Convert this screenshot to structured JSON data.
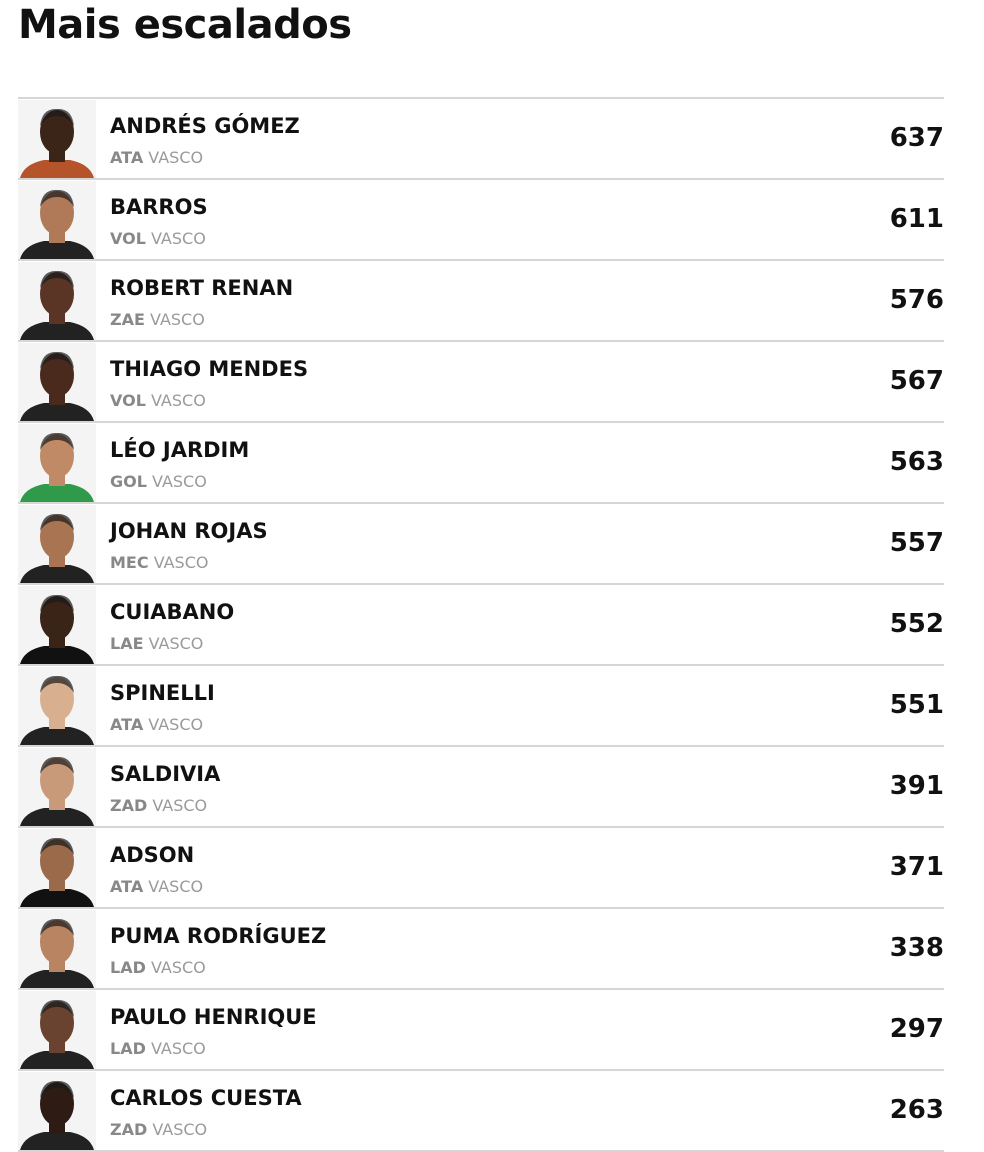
{
  "title": "Mais escalados",
  "players": [
    {
      "name": "ANDRÉS GÓMEZ",
      "position": "ATA",
      "team": "VASCO",
      "count": "637",
      "skin": "#3b2418",
      "shirt": "#b5532a"
    },
    {
      "name": "BARROS",
      "position": "VOL",
      "team": "VASCO",
      "count": "611",
      "skin": "#b07a58",
      "shirt": "#222"
    },
    {
      "name": "ROBERT RENAN",
      "position": "ZAE",
      "team": "VASCO",
      "count": "576",
      "skin": "#5a3525",
      "shirt": "#222"
    },
    {
      "name": "THIAGO MENDES",
      "position": "VOL",
      "team": "VASCO",
      "count": "567",
      "skin": "#4a2a1c",
      "shirt": "#222"
    },
    {
      "name": "LÉO JARDIM",
      "position": "GOL",
      "team": "VASCO",
      "count": "563",
      "skin": "#c08a66",
      "shirt": "#2e9a4a"
    },
    {
      "name": "JOHAN ROJAS",
      "position": "MEC",
      "team": "VASCO",
      "count": "557",
      "skin": "#a87452",
      "shirt": "#222"
    },
    {
      "name": "CUIABANO",
      "position": "LAE",
      "team": "VASCO",
      "count": "552",
      "skin": "#3a2418",
      "shirt": "#111"
    },
    {
      "name": "SPINELLI",
      "position": "ATA",
      "team": "VASCO",
      "count": "551",
      "skin": "#d8b090",
      "shirt": "#222"
    },
    {
      "name": "SALDIVIA",
      "position": "ZAD",
      "team": "VASCO",
      "count": "391",
      "skin": "#c89a7a",
      "shirt": "#222"
    },
    {
      "name": "ADSON",
      "position": "ATA",
      "team": "VASCO",
      "count": "371",
      "skin": "#9a6a4a",
      "shirt": "#111"
    },
    {
      "name": "PUMA RODRÍGUEZ",
      "position": "LAD",
      "team": "VASCO",
      "count": "338",
      "skin": "#b88462",
      "shirt": "#222"
    },
    {
      "name": "PAULO HENRIQUE",
      "position": "LAD",
      "team": "VASCO",
      "count": "297",
      "skin": "#6a4230",
      "shirt": "#222"
    },
    {
      "name": "CARLOS CUESTA",
      "position": "ZAD",
      "team": "VASCO",
      "count": "263",
      "skin": "#2e1c14",
      "shirt": "#222"
    }
  ]
}
